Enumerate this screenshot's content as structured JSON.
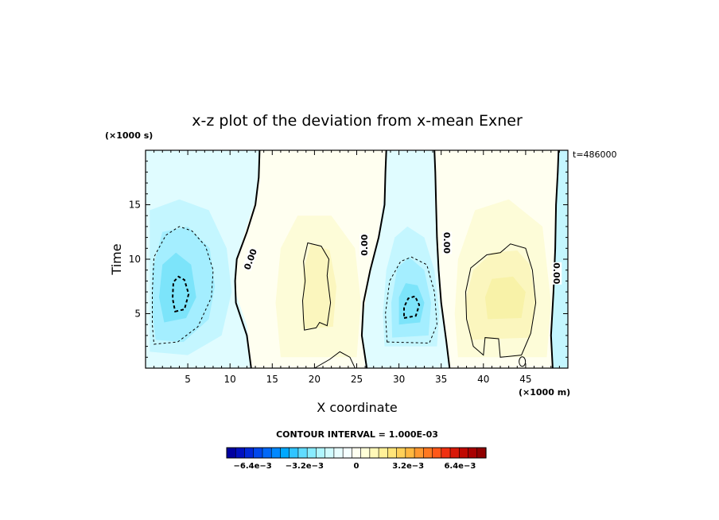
{
  "chart_data": {
    "type": "heatmap",
    "title": "x-z plot of the deviation from x-mean Exner",
    "xlabel": "X coordinate",
    "ylabel": "Time",
    "x_unit": "(×1000 m)",
    "y_unit": "(×1000 s)",
    "time_label": "t=486000",
    "xlim": [
      0,
      50
    ],
    "ylim": [
      0,
      20
    ],
    "x_ticks": [
      "5",
      "10",
      "15",
      "20",
      "25",
      "30",
      "35",
      "40",
      "45"
    ],
    "y_ticks": [
      "5",
      "10",
      "15"
    ],
    "contour_interval_text": "CONTOUR INTERVAL = 1.000E-03",
    "contour_labels": [
      "0.00",
      "0.00",
      "0.00",
      "0.00"
    ],
    "colorbar": {
      "min": -0.008,
      "max": 0.008,
      "step": 0.0004,
      "tick_labels": [
        "−6.4e−3",
        "−3.2e−3",
        "0",
        "3.2e−3",
        "6.4e−3"
      ],
      "tick_values": [
        -0.0064,
        -0.0032,
        0,
        0.0032,
        0.0064
      ]
    },
    "field_features": [
      {
        "kind": "min",
        "x": 4,
        "y": 7,
        "value": -0.0021
      },
      {
        "kind": "min",
        "x": 31,
        "y": 5.8,
        "value": -0.0021
      },
      {
        "kind": "max",
        "x": 42.5,
        "y": 6,
        "value": 0.0013
      },
      {
        "kind": "max",
        "x": 20.5,
        "y": 7,
        "value": 0.0011
      }
    ],
    "grid": false
  }
}
